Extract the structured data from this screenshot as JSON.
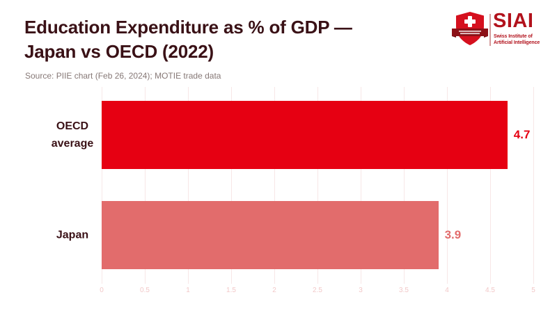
{
  "header": {
    "title_line1": "Education Expenditure as % of GDP —",
    "title_line2": "Japan vs OECD (2022)",
    "source": "Source: PIIE chart (Feb 26, 2024); MOTIE trade data"
  },
  "logo": {
    "brand": "SIAI",
    "tagline_line1": "Swiss Institute of",
    "tagline_line2": "Artificial Intelligence",
    "shield_icon": "swiss-shield-cross-ribbon"
  },
  "colors": {
    "title_text": "#3a1116",
    "source_text": "#867876",
    "category_label": "#3a1116",
    "gridline": "#f8e7e7",
    "tick_label": "#f2c8c8",
    "logo_red": "#b2121c",
    "shield_red": "#d5101e",
    "ribbon_dark": "#8c1117",
    "logo_divider": "#d49a9a"
  },
  "chart_data": {
    "type": "bar",
    "orientation": "horizontal",
    "title": "Education Expenditure as % of GDP — Japan vs OECD (2022)",
    "categories": [
      "OECD average",
      "Japan"
    ],
    "values": [
      4.7,
      3.9
    ],
    "value_labels": [
      "4.7",
      "3.9"
    ],
    "bar_colors": [
      "#e60012",
      "#e26c6c"
    ],
    "xlabel": "",
    "ylabel": "",
    "xlim": [
      0,
      5
    ],
    "xticks": [
      "0",
      "0.5",
      "1",
      "1.5",
      "2",
      "2.5",
      "3",
      "3.5",
      "4",
      "4.5",
      "5"
    ],
    "grid": true,
    "legend": false
  }
}
